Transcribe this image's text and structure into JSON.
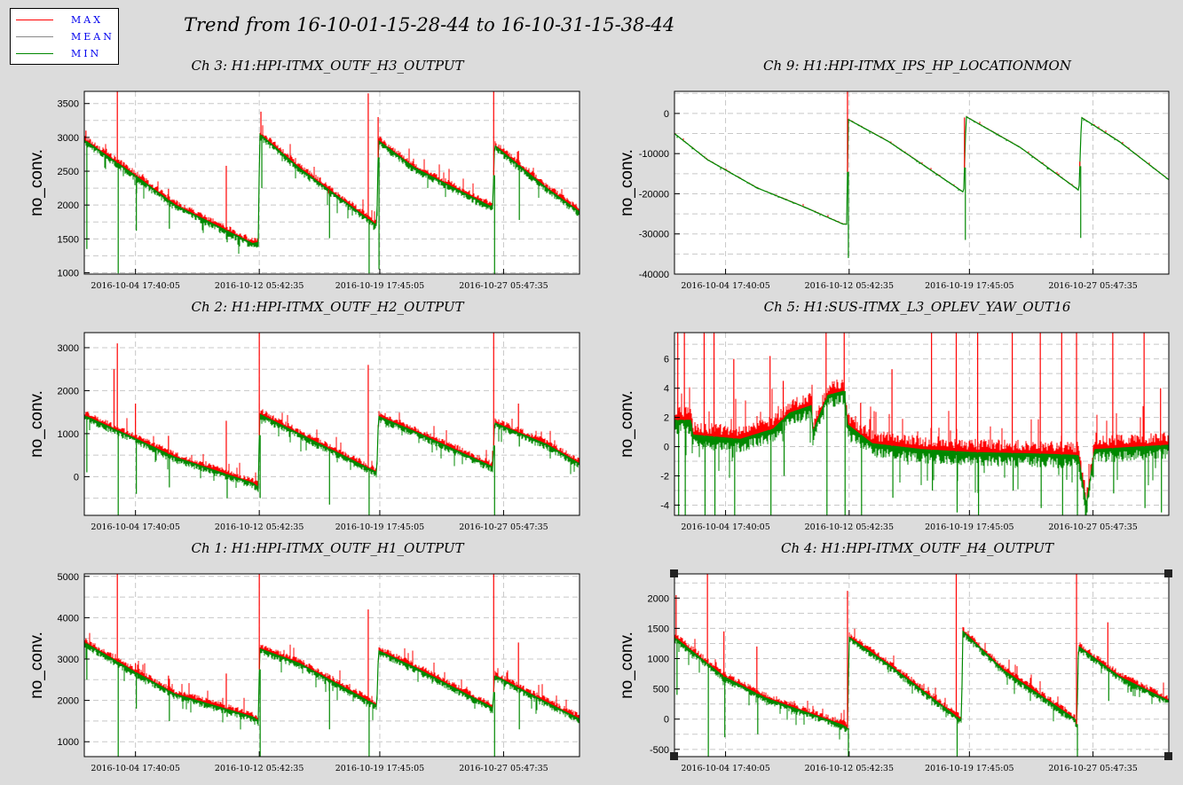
{
  "page": {
    "title": "Trend from 16-10-01-15-28-44 to 16-10-31-15-38-44"
  },
  "legend": {
    "items": [
      {
        "label": "MAX",
        "color": "#ff0000"
      },
      {
        "label": "MEAN",
        "color": "#888888"
      },
      {
        "label": "MIN",
        "color": "#008800"
      }
    ]
  },
  "chart_data": [
    {
      "type": "line",
      "title": "Ch 3: H1:HPI-ITMX_OUTF_H3_OUTPUT",
      "ylabel": "no_conv.",
      "xlabel": "",
      "ylim": [
        980,
        3680
      ],
      "yticks": [
        1000,
        1500,
        2000,
        2500,
        3000,
        3500
      ],
      "xlim": [
        0,
        30
      ],
      "xticks": [
        {
          "x": 3.1,
          "label": "2016-10-04 17:40:05"
        },
        {
          "x": 10.6,
          "label": "2016-10-12 05:42:35"
        },
        {
          "x": 17.9,
          "label": "2016-10-19 17:45:05"
        },
        {
          "x": 25.4,
          "label": "2016-10-27 05:47:35"
        }
      ],
      "grid": true,
      "series": [
        {
          "name": "MAX",
          "color": "#ff0000"
        },
        {
          "name": "MEAN",
          "color": "#888888"
        },
        {
          "name": "MIN",
          "color": "#008800"
        }
      ],
      "mean_points": [
        [
          0,
          2960
        ],
        [
          3,
          2450
        ],
        [
          5.5,
          2000
        ],
        [
          10.2,
          1430
        ],
        [
          10.55,
          1450
        ],
        [
          10.62,
          3050
        ],
        [
          13,
          2550
        ],
        [
          17.6,
          1720
        ],
        [
          17.72,
          1720
        ],
        [
          17.82,
          2950
        ],
        [
          20,
          2550
        ],
        [
          24.6,
          1980
        ],
        [
          24.75,
          2000
        ],
        [
          24.85,
          2880
        ],
        [
          28,
          2250
        ],
        [
          30,
          1900
        ]
      ],
      "spikes": [
        {
          "x": 0.1,
          "max": 3100,
          "min": 1350
        },
        {
          "x": 2.0,
          "max": 3680,
          "min": 990
        },
        {
          "x": 3.1,
          "max": 2420,
          "min": 1620
        },
        {
          "x": 5.1,
          "max": 2240,
          "min": 1650
        },
        {
          "x": 8.6,
          "max": 2580,
          "min": 1450
        },
        {
          "x": 10.7,
          "max": 3380,
          "min": 2250
        },
        {
          "x": 14.8,
          "max": 2170,
          "min": 1510
        },
        {
          "x": 17.2,
          "max": 3650,
          "min": 990
        },
        {
          "x": 17.8,
          "max": 3300,
          "min": 1050
        },
        {
          "x": 24.8,
          "max": 3680,
          "min": 980
        },
        {
          "x": 26.3,
          "max": 2800,
          "min": 1780
        }
      ]
    },
    {
      "type": "line",
      "title": "Ch 9: H1:HPI-ITMX_IPS_HP_LOCATIONMON",
      "ylabel": "no_conv.",
      "xlabel": "",
      "ylim": [
        -40000,
        5500
      ],
      "yticks": [
        -40000,
        -30000,
        -20000,
        -10000,
        0
      ],
      "xlim": [
        0,
        30
      ],
      "xticks": [
        {
          "x": 3.1,
          "label": "2016-10-04 17:40:05"
        },
        {
          "x": 10.6,
          "label": "2016-10-12 05:42:35"
        },
        {
          "x": 17.9,
          "label": "2016-10-19 17:45:05"
        },
        {
          "x": 25.4,
          "label": "2016-10-27 05:47:35"
        }
      ],
      "grid": true,
      "series": [
        {
          "name": "MAX",
          "color": "#ff0000"
        },
        {
          "name": "MEAN",
          "color": "#888888"
        },
        {
          "name": "MIN",
          "color": "#008800"
        }
      ],
      "mean_points": [
        [
          0,
          -5000
        ],
        [
          2,
          -11500
        ],
        [
          5,
          -18500
        ],
        [
          8,
          -23500
        ],
        [
          10.2,
          -27500
        ],
        [
          10.45,
          -27600
        ],
        [
          10.55,
          -1500
        ],
        [
          13,
          -7000
        ],
        [
          17.5,
          -19500
        ],
        [
          17.55,
          -19800
        ],
        [
          17.7,
          -800
        ],
        [
          21,
          -8500
        ],
        [
          24.5,
          -19000
        ],
        [
          24.55,
          -19200
        ],
        [
          24.7,
          -1000
        ],
        [
          27,
          -7000
        ],
        [
          30,
          -16500
        ]
      ],
      "spikes": [
        {
          "x": 10.5,
          "max": 5500,
          "min": -36000
        },
        {
          "x": 17.6,
          "max": -1000,
          "min": -31500
        },
        {
          "x": 24.6,
          "max": -12000,
          "min": -31000
        }
      ]
    },
    {
      "type": "line",
      "title": "Ch 2: H1:HPI-ITMX_OUTF_H2_OUTPUT",
      "ylabel": "no_conv.",
      "xlabel": "",
      "ylim": [
        -900,
        3350
      ],
      "yticks": [
        0,
        1000,
        2000,
        3000
      ],
      "xlim": [
        0,
        30
      ],
      "xticks": [
        {
          "x": 3.1,
          "label": "2016-10-04 17:40:05"
        },
        {
          "x": 10.6,
          "label": "2016-10-12 05:42:35"
        },
        {
          "x": 17.9,
          "label": "2016-10-19 17:45:05"
        },
        {
          "x": 25.4,
          "label": "2016-10-27 05:47:35"
        }
      ],
      "grid": true,
      "series": [
        {
          "name": "MAX",
          "color": "#ff0000"
        },
        {
          "name": "MEAN",
          "color": "#888888"
        },
        {
          "name": "MIN",
          "color": "#008800"
        }
      ],
      "mean_points": [
        [
          0,
          1420
        ],
        [
          3,
          900
        ],
        [
          5.5,
          450
        ],
        [
          10.2,
          -150
        ],
        [
          10.55,
          -250
        ],
        [
          10.62,
          1450
        ],
        [
          13,
          1000
        ],
        [
          17.6,
          120
        ],
        [
          17.72,
          100
        ],
        [
          17.82,
          1400
        ],
        [
          20,
          1050
        ],
        [
          24.6,
          250
        ],
        [
          24.75,
          200
        ],
        [
          24.85,
          1250
        ],
        [
          28,
          750
        ],
        [
          30,
          300
        ]
      ],
      "spikes": [
        {
          "x": 0.1,
          "max": 1500,
          "min": 100
        },
        {
          "x": 1.8,
          "max": 2500,
          "min": 1000
        },
        {
          "x": 2.0,
          "max": 3100,
          "min": -900
        },
        {
          "x": 3.1,
          "max": 1700,
          "min": -400
        },
        {
          "x": 5.1,
          "max": 950,
          "min": -250
        },
        {
          "x": 8.6,
          "max": 1300,
          "min": -500
        },
        {
          "x": 10.6,
          "max": 3350,
          "min": -500
        },
        {
          "x": 14.8,
          "max": 700,
          "min": -650
        },
        {
          "x": 17.2,
          "max": 2600,
          "min": -900
        },
        {
          "x": 24.8,
          "max": 3350,
          "min": -900
        },
        {
          "x": 26.3,
          "max": 1700,
          "min": 700
        }
      ]
    },
    {
      "type": "line",
      "title": "Ch 5: H1:SUS-ITMX_L3_OPLEV_YAW_OUT16",
      "ylabel": "no_conv.",
      "xlabel": "",
      "ylim": [
        -4.7,
        7.8
      ],
      "yticks": [
        -4,
        -2,
        0,
        2,
        4,
        6
      ],
      "xlim": [
        0,
        30
      ],
      "xticks": [
        {
          "x": 3.1,
          "label": "2016-10-04 17:40:05"
        },
        {
          "x": 10.6,
          "label": "2016-10-12 05:42:35"
        },
        {
          "x": 17.9,
          "label": "2016-10-19 17:45:05"
        },
        {
          "x": 25.4,
          "label": "2016-10-27 05:47:35"
        }
      ],
      "grid": true,
      "series": [
        {
          "name": "MAX",
          "color": "#ff0000"
        },
        {
          "name": "MEAN",
          "color": "#888888"
        },
        {
          "name": "MIN",
          "color": "#008800"
        }
      ],
      "mean_points": [
        [
          0,
          1.8
        ],
        [
          1,
          1.8
        ],
        [
          1.1,
          0.8
        ],
        [
          4,
          0.5
        ],
        [
          6,
          1.2
        ],
        [
          7,
          2.3
        ],
        [
          8.3,
          2.8
        ],
        [
          8.4,
          1.0
        ],
        [
          9.3,
          3.5
        ],
        [
          10.3,
          3.8
        ],
        [
          10.5,
          1.5
        ],
        [
          12,
          0.2
        ],
        [
          15,
          -0.2
        ],
        [
          18,
          -0.4
        ],
        [
          22,
          -0.5
        ],
        [
          24.5,
          -0.6
        ],
        [
          25,
          -4.0
        ],
        [
          25.5,
          -0.2
        ],
        [
          30,
          0.1
        ]
      ],
      "spikes": [
        {
          "x": 0.2,
          "max": 7.8,
          "min": -4.7
        },
        {
          "x": 0.6,
          "max": 7.8,
          "min": -4.7
        },
        {
          "x": 1.8,
          "max": 7.8,
          "min": -4.7
        },
        {
          "x": 2.4,
          "max": 7.8,
          "min": -4.7
        },
        {
          "x": 3.6,
          "max": 6.0,
          "min": -4.7
        },
        {
          "x": 5.8,
          "max": 6.2,
          "min": -4.7
        },
        {
          "x": 6.6,
          "max": 4.5,
          "min": -2.0
        },
        {
          "x": 9.2,
          "max": 7.8,
          "min": -4.7
        },
        {
          "x": 10.3,
          "max": 7.8,
          "min": -4.7
        },
        {
          "x": 11.3,
          "max": 3.0,
          "min": -4.7
        },
        {
          "x": 13.2,
          "max": 5.3,
          "min": -3.5
        },
        {
          "x": 15.6,
          "max": 7.8,
          "min": -3.0
        },
        {
          "x": 17.1,
          "max": 7.8,
          "min": -4.5
        },
        {
          "x": 18.4,
          "max": 7.8,
          "min": -4.7
        },
        {
          "x": 20.5,
          "max": 7.8,
          "min": -3.0
        },
        {
          "x": 22.2,
          "max": 7.8,
          "min": -4.2
        },
        {
          "x": 23.5,
          "max": 7.8,
          "min": -4.7
        },
        {
          "x": 24.4,
          "max": 7.8,
          "min": -4.7
        },
        {
          "x": 26.6,
          "max": 7.8,
          "min": -3.2
        },
        {
          "x": 28.5,
          "max": 7.8,
          "min": -4.2
        },
        {
          "x": 29.5,
          "max": 4.0,
          "min": -4.5
        }
      ]
    },
    {
      "type": "line",
      "title": "Ch 1: H1:HPI-ITMX_OUTF_H1_OUTPUT",
      "ylabel": "no_conv.",
      "xlabel": "",
      "ylim": [
        640,
        5060
      ],
      "yticks": [
        1000,
        2000,
        3000,
        4000,
        5000
      ],
      "xlim": [
        0,
        30
      ],
      "xticks": [
        {
          "x": 3.1,
          "label": "2016-10-04 17:40:05"
        },
        {
          "x": 10.6,
          "label": "2016-10-12 05:42:35"
        },
        {
          "x": 17.9,
          "label": "2016-10-19 17:45:05"
        },
        {
          "x": 25.4,
          "label": "2016-10-27 05:47:35"
        }
      ],
      "grid": true,
      "series": [
        {
          "name": "MAX",
          "color": "#ff0000"
        },
        {
          "name": "MEAN",
          "color": "#888888"
        },
        {
          "name": "MIN",
          "color": "#008800"
        }
      ],
      "mean_points": [
        [
          0,
          3400
        ],
        [
          3,
          2700
        ],
        [
          5.5,
          2150
        ],
        [
          10.2,
          1600
        ],
        [
          10.55,
          1500
        ],
        [
          10.62,
          3250
        ],
        [
          13,
          2900
        ],
        [
          17.6,
          1900
        ],
        [
          17.72,
          1850
        ],
        [
          17.82,
          3200
        ],
        [
          20,
          2800
        ],
        [
          24.6,
          1850
        ],
        [
          24.75,
          1800
        ],
        [
          24.85,
          2600
        ],
        [
          28,
          1950
        ],
        [
          30,
          1550
        ]
      ],
      "spikes": [
        {
          "x": 0.1,
          "max": 3500,
          "min": 2500
        },
        {
          "x": 2.0,
          "max": 5060,
          "min": 640
        },
        {
          "x": 3.1,
          "max": 2900,
          "min": 1800
        },
        {
          "x": 5.1,
          "max": 2600,
          "min": 1500
        },
        {
          "x": 8.6,
          "max": 2650,
          "min": 1600
        },
        {
          "x": 10.6,
          "max": 5060,
          "min": 640
        },
        {
          "x": 14.8,
          "max": 2500,
          "min": 1300
        },
        {
          "x": 17.2,
          "max": 4200,
          "min": 640
        },
        {
          "x": 24.8,
          "max": 5060,
          "min": 640
        },
        {
          "x": 26.3,
          "max": 3400,
          "min": 1300
        }
      ]
    },
    {
      "type": "line",
      "title": "Ch 4: H1:HPI-ITMX_OUTF_H4_OUTPUT",
      "ylabel": "no_conv.",
      "xlabel": "",
      "ylim": [
        -620,
        2400
      ],
      "yticks": [
        -500,
        0,
        500,
        1000,
        1500,
        2000
      ],
      "xlim": [
        0,
        30
      ],
      "xticks": [
        {
          "x": 3.1,
          "label": "2016-10-04 17:40:05"
        },
        {
          "x": 10.6,
          "label": "2016-10-12 05:42:35"
        },
        {
          "x": 17.9,
          "label": "2016-10-19 17:45:05"
        },
        {
          "x": 25.4,
          "label": "2016-10-27 05:47:35"
        }
      ],
      "grid": true,
      "series": [
        {
          "name": "MAX",
          "color": "#ff0000"
        },
        {
          "name": "MEAN",
          "color": "#888888"
        },
        {
          "name": "MIN",
          "color": "#008800"
        }
      ],
      "mean_points": [
        [
          0,
          1350
        ],
        [
          3,
          700
        ],
        [
          5.5,
          350
        ],
        [
          10.2,
          -100
        ],
        [
          10.5,
          -150
        ],
        [
          10.6,
          1350
        ],
        [
          13,
          900
        ],
        [
          17.3,
          0
        ],
        [
          17.42,
          0
        ],
        [
          17.5,
          1450
        ],
        [
          20,
          800
        ],
        [
          24.3,
          0
        ],
        [
          24.42,
          -100
        ],
        [
          24.52,
          1200
        ],
        [
          27,
          700
        ],
        [
          30,
          300
        ]
      ],
      "spikes": [
        {
          "x": 0.1,
          "max": 2050,
          "min": 400
        },
        {
          "x": 2.0,
          "max": 2400,
          "min": -620
        },
        {
          "x": 3.0,
          "max": 1450,
          "min": -300
        },
        {
          "x": 5.0,
          "max": 1200,
          "min": -250
        },
        {
          "x": 10.5,
          "max": 2120,
          "min": -620
        },
        {
          "x": 17.1,
          "max": 2400,
          "min": -620
        },
        {
          "x": 24.4,
          "max": 2400,
          "min": -620
        },
        {
          "x": 26.3,
          "max": 1600,
          "min": 300
        }
      ]
    }
  ]
}
